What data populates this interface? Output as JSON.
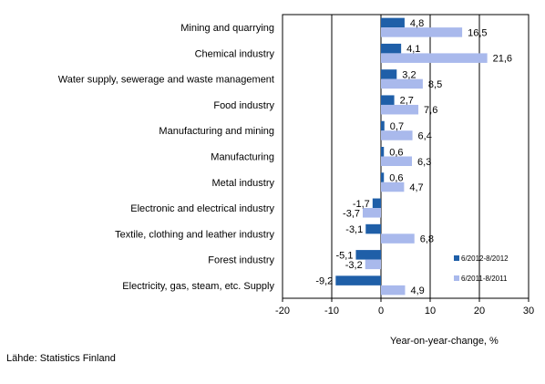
{
  "chart_data": {
    "type": "bar",
    "orientation": "horizontal",
    "categories": [
      "Mining and quarrying",
      "Chemical industry",
      "Water supply, sewerage and waste management",
      "Food industry",
      "Manufacturing and mining",
      "Manufacturing",
      "Metal industry",
      "Electronic and electrical industry",
      "Textile, clothing and leather industry",
      "Forest industry",
      "Electricity, gas, steam, etc. Supply"
    ],
    "series": [
      {
        "name": "6/2012-8/2012",
        "color": "#1f5fa8",
        "values": [
          4.8,
          4.1,
          3.2,
          2.7,
          0.7,
          0.6,
          0.6,
          -1.7,
          -3.1,
          -5.1,
          -9.2
        ],
        "labels": [
          "4,8",
          "4,1",
          "3,2",
          "2,7",
          "0,7",
          "0,6",
          "0,6",
          "-1,7",
          "-3,1",
          "-5,1",
          "-9,2"
        ]
      },
      {
        "name": "6/2011-8/2011",
        "color": "#a9b9ec",
        "values": [
          16.5,
          21.6,
          8.5,
          7.6,
          6.4,
          6.3,
          4.7,
          -3.7,
          6.8,
          -3.2,
          4.9
        ],
        "labels": [
          "16,5",
          "21,6",
          "8,5",
          "7,6",
          "6,4",
          "6,3",
          "4,7",
          "-3,7",
          "6,8",
          "-3,2",
          "4,9"
        ]
      }
    ],
    "xlim": [
      -20,
      30
    ],
    "xticks": [
      -20,
      -10,
      0,
      10,
      20,
      30
    ],
    "xtick_labels": [
      "-20",
      "-10",
      "0",
      "10",
      "20",
      "30"
    ],
    "xlabel": "Year-on-year-change, %",
    "title": "",
    "grid": "vertical",
    "legend_position": "bottom-right, inside plot"
  },
  "source_note": "Lähde: Statistics Finland"
}
